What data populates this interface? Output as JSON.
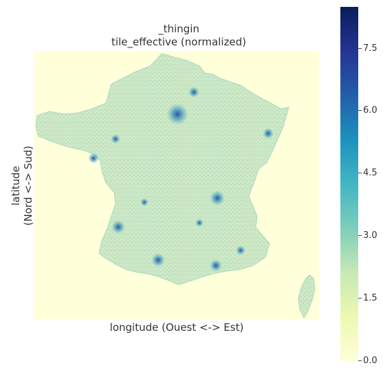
{
  "title": "_thingin",
  "subtitle": "tile_effective (normalized)",
  "xlabel": "longitude (Ouest <-> Est)",
  "ylabel_line1": "latitude",
  "ylabel_line2": "(Nord <-> Sud)",
  "colorbar": {
    "colormap": "YlGnBu",
    "min": 0.0,
    "max": 8.5,
    "ticks": [
      "0.0",
      "1.5",
      "3.0",
      "4.5",
      "6.0",
      "7.5"
    ],
    "colors": [
      "#ffffd9",
      "#edf8b1",
      "#c7e9b4",
      "#7fcdbb",
      "#41b6c4",
      "#1d91c0",
      "#225ea8",
      "#253494",
      "#081d58"
    ]
  },
  "map": {
    "background_color": "#ffffd9",
    "land_color": "#d6eec8"
  }
}
